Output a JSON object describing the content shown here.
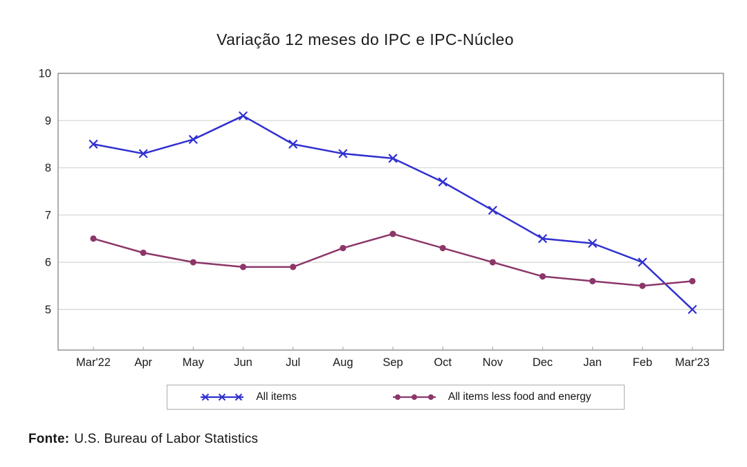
{
  "page": {
    "source_label": "Fonte:",
    "source_text": "U.S. Bureau of Labor Statistics"
  },
  "colors": {
    "frame": "#8c8c8c",
    "grid": "#d8d8d8",
    "tick": "#b0b0b0",
    "text": "#1a1a1a",
    "legend_border": "#ababab",
    "background": "#ffffff"
  },
  "chart_data": {
    "type": "line",
    "title": "Variação 12 meses do IPC e IPC-Núcleo",
    "categories": [
      "Mar'22",
      "Apr",
      "May",
      "Jun",
      "Jul",
      "Aug",
      "Sep",
      "Oct",
      "Nov",
      "Dec",
      "Jan",
      "Feb",
      "Mar'23"
    ],
    "series": [
      {
        "name": "All items",
        "marker": "x",
        "color": "#3030d0",
        "values": [
          8.5,
          8.3,
          8.6,
          9.1,
          8.5,
          8.3,
          8.2,
          7.7,
          7.1,
          6.5,
          6.4,
          6.0,
          5.0
        ]
      },
      {
        "name": "All items less food and energy",
        "marker": "circle",
        "color": "#8c3769",
        "values": [
          6.5,
          6.2,
          6.0,
          5.9,
          5.9,
          6.3,
          6.6,
          6.3,
          6.0,
          5.7,
          5.6,
          5.5,
          5.6
        ]
      }
    ],
    "y_ticks": [
      5,
      6,
      7,
      8,
      9,
      10
    ],
    "ylim": [
      4.14,
      10
    ],
    "xlabel": "",
    "ylabel": "",
    "grid": "horizontal",
    "legend_position": "bottom",
    "source_note": "Fonte: U.S. Bureau of Labor Statistics"
  }
}
